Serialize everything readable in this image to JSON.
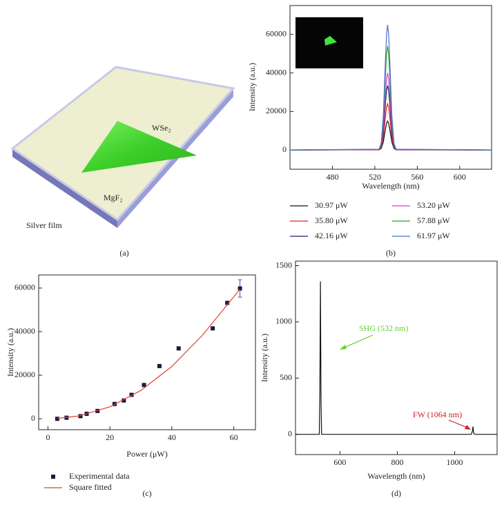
{
  "diagram": {
    "labels": [
      "WSe₂",
      "MgF₂",
      "Silver film"
    ],
    "caption": "(a)"
  },
  "chart_data": [
    {
      "type": "line",
      "caption": "(b)",
      "x_label": "Wavelength (nm)",
      "y_label": "Intensity (a.u.)",
      "xlim": [
        440,
        630
      ],
      "ylim": [
        -10000,
        75000
      ],
      "xticks": [
        480,
        520,
        560,
        600
      ],
      "yticks": [
        0,
        20000,
        40000,
        60000
      ],
      "x": [
        440,
        524,
        526,
        528,
        530,
        531,
        532,
        533,
        534,
        536,
        538,
        540,
        630
      ],
      "series": [
        {
          "name": "30.97 μW",
          "color": "#111111",
          "values": [
            0,
            90,
            840,
            4170,
            10890,
            13850,
            15000,
            13850,
            10890,
            4170,
            840,
            90,
            0
          ]
        },
        {
          "name": "35.80 μW",
          "color": "#e02020",
          "values": [
            0,
            140,
            1340,
            6670,
            17420,
            22150,
            24000,
            22150,
            17420,
            6670,
            1340,
            140,
            0
          ]
        },
        {
          "name": "42.16 μW",
          "color": "#1a1a6e",
          "values": [
            0,
            200,
            1880,
            9310,
            24320,
            30920,
            33500,
            30920,
            24320,
            9310,
            1880,
            200,
            0
          ]
        },
        {
          "name": "53.20 μW",
          "color": "#d040c0",
          "values": [
            0,
            240,
            2240,
            11120,
            29040,
            36920,
            40000,
            36920,
            29040,
            11120,
            2240,
            240,
            0
          ]
        },
        {
          "name": "57.88 μW",
          "color": "#2ca02c",
          "values": [
            0,
            320,
            3020,
            15010,
            39200,
            49840,
            54000,
            49840,
            39200,
            15010,
            3020,
            320,
            0
          ]
        },
        {
          "name": "61.97 μW",
          "color": "#4a6ed0",
          "values": [
            0,
            390,
            3640,
            18070,
            47190,
            59990,
            65000,
            59990,
            47190,
            18070,
            3640,
            390,
            0
          ]
        }
      ]
    },
    {
      "type": "scatter",
      "caption": "(c)",
      "x_label": "Power (μW)",
      "y_label": "Intensity (a.u.)",
      "xlim": [
        -3,
        67
      ],
      "ylim": [
        -5000,
        66000
      ],
      "xticks": [
        0,
        20,
        40,
        60
      ],
      "yticks": [
        0,
        20000,
        40000,
        60000
      ],
      "series": [
        {
          "name": "Experimental data",
          "type": "scatter",
          "color": "#1a1a40",
          "x": [
            3,
            6,
            10.5,
            12.5,
            16,
            21.5,
            24.5,
            27,
            31,
            36,
            42.2,
            53.2,
            57.9,
            62
          ],
          "values": [
            0,
            500,
            1200,
            2300,
            3600,
            6800,
            8400,
            11000,
            15500,
            24200,
            32300,
            41500,
            53200,
            59800
          ],
          "errors": [
            null,
            null,
            null,
            null,
            null,
            null,
            null,
            null,
            null,
            null,
            null,
            null,
            null,
            4000
          ],
          "error_color": "#4050c0"
        },
        {
          "name": "Square fitted",
          "type": "line",
          "color": "#e04030",
          "x": [
            3,
            10,
            20,
            30,
            40,
            50,
            62
          ],
          "values": [
            200,
            1300,
            5500,
            13000,
            24000,
            38500,
            59500
          ]
        }
      ]
    },
    {
      "type": "line",
      "caption": "(d)",
      "x_label": "Wavelength (nm)",
      "y_label": "Intensity (a.u.)",
      "xlim": [
        445,
        1148
      ],
      "ylim": [
        -180,
        1540
      ],
      "xticks": [
        600,
        800,
        1000
      ],
      "yticks": [
        0,
        500,
        1000,
        1500
      ],
      "x": [
        445,
        528,
        530,
        532,
        534,
        536,
        1058,
        1062,
        1064,
        1066,
        1070,
        1148
      ],
      "series": [
        {
          "color": "#111111",
          "values": [
            0,
            0,
            400,
            1360,
            300,
            0,
            0,
            30,
            70,
            10,
            0,
            0
          ]
        }
      ],
      "annotations": [
        {
          "text": "SHG (532 nm)",
          "color": "#66cc33"
        },
        {
          "text": "FW (1064 nm)",
          "color": "#d02020"
        }
      ]
    }
  ]
}
